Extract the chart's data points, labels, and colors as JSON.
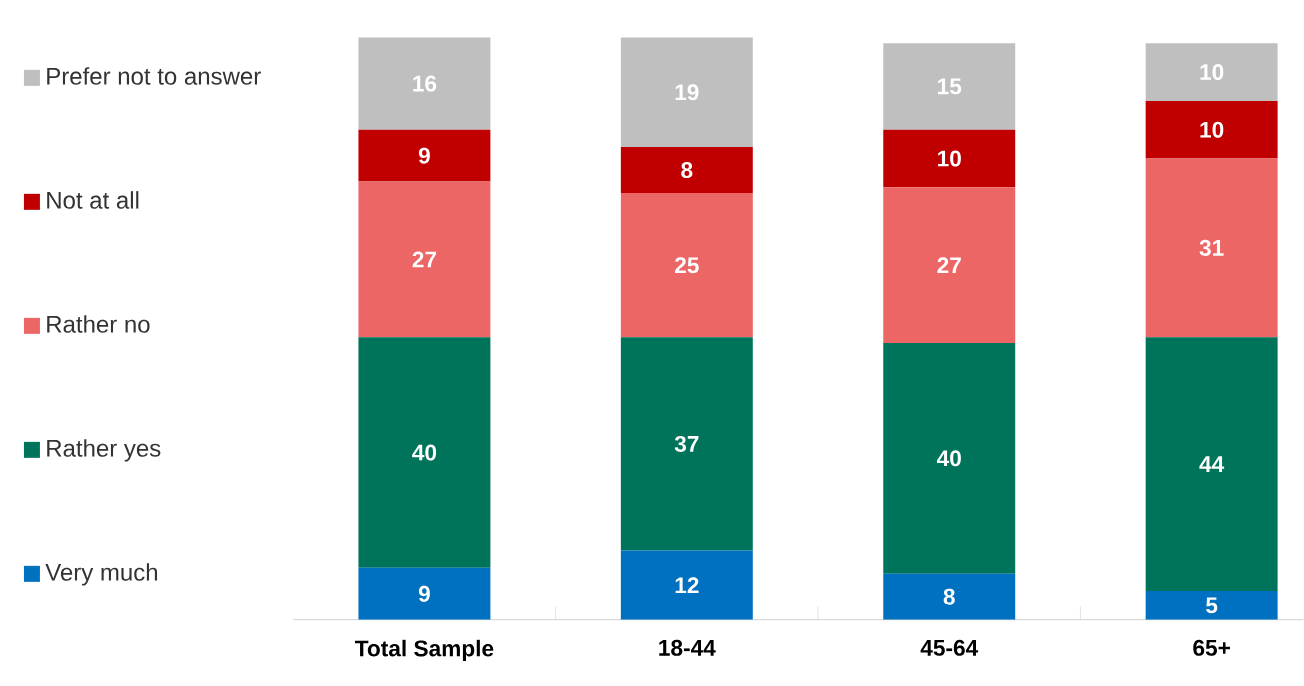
{
  "chart_data": {
    "type": "bar",
    "stacked": true,
    "data_labels": true,
    "legend": "left",
    "categories": [
      "Total Sample",
      "18-44",
      "45-64",
      "65+"
    ],
    "series": [
      {
        "name": "Very much",
        "color": "#0070c0",
        "values": [
          9,
          12,
          8,
          5
        ]
      },
      {
        "name": "Rather yes",
        "color": "#00735b",
        "values": [
          40,
          37,
          40,
          44
        ]
      },
      {
        "name": "Rather no",
        "color": "#ec6666",
        "values": [
          27,
          25,
          27,
          31
        ]
      },
      {
        "name": "Not at all",
        "color": "#c00000",
        "values": [
          9,
          8,
          10,
          10
        ]
      },
      {
        "name": "Prefer not to answer",
        "color": "#bfbfbf",
        "values": [
          16,
          19,
          15,
          10
        ]
      }
    ]
  }
}
